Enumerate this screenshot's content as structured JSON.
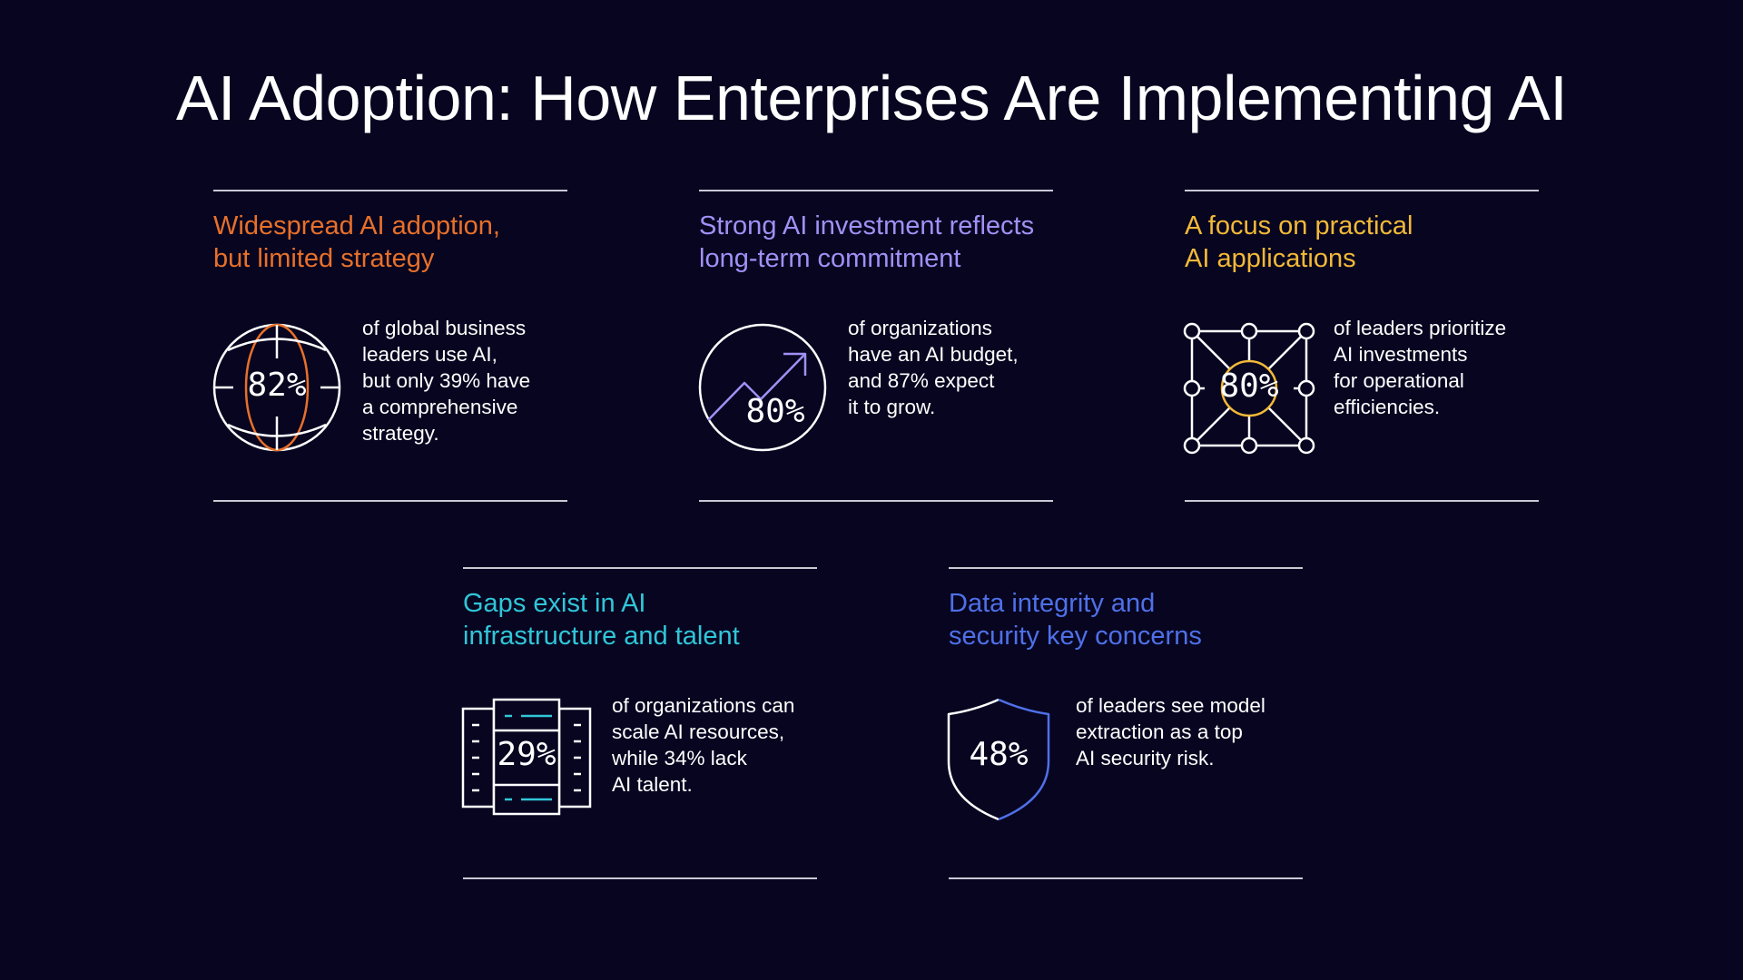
{
  "title": "AI Adoption: How Enterprises Are Implementing AI",
  "colors": {
    "background": "#070520",
    "orange": "#e8702a",
    "lavender": "#a190f5",
    "yellow": "#f2b938",
    "cyan": "#30c6d8",
    "blue": "#4f70e8"
  },
  "cards": [
    {
      "heading": [
        "Widespread AI adoption,",
        "but limited strategy"
      ],
      "stat": "82%",
      "icon": "globe-icon",
      "description": [
        "of global business",
        "leaders use AI,",
        "but only 39% have",
        "a comprehensive",
        "strategy."
      ]
    },
    {
      "heading": [
        "Strong AI investment reflects",
        "long-term commitment"
      ],
      "stat": "80%",
      "icon": "trending-up-icon",
      "description": [
        "of organizations",
        "have an AI budget,",
        "and 87% expect",
        "it to grow."
      ]
    },
    {
      "heading": [
        "A focus on practical",
        "AI applications"
      ],
      "stat": "80%",
      "icon": "network-nodes-icon",
      "description": [
        "of leaders prioritize",
        "AI investments",
        "for operational",
        "efficiencies."
      ]
    },
    {
      "heading": [
        "Gaps exist in AI",
        "infrastructure and talent"
      ],
      "stat": "29%",
      "icon": "server-rack-icon",
      "description": [
        "of organizations can",
        "scale AI resources,",
        "while 34% lack",
        "AI talent."
      ]
    },
    {
      "heading": [
        "Data integrity and",
        "security key concerns"
      ],
      "stat": "48%",
      "icon": "shield-icon",
      "description": [
        "of leaders see model",
        "extraction as a top",
        "AI security risk."
      ]
    }
  ]
}
